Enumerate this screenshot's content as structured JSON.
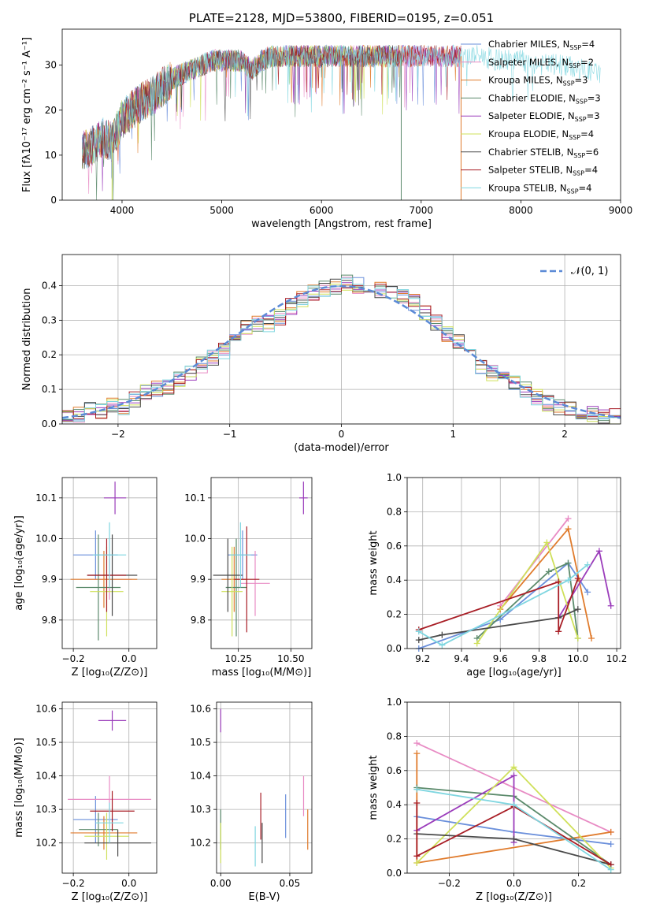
{
  "colors": {
    "chabrier_miles": "#6a8fdb",
    "salpeter_miles": "#e88bc4",
    "kroupa_miles": "#e07b2c",
    "chabrier_elodie": "#5b8a6b",
    "salpeter_elodie": "#9b3dbb",
    "kroupa_elodie": "#cfe05a",
    "chabrier_stelib": "#4a4a4a",
    "salpeter_stelib": "#a81d25",
    "kroupa_stelib": "#7fd6e0",
    "normal_curve": "#5b8ad6",
    "grid": "#b0b0b0"
  },
  "chart_data": [
    {
      "type": "line",
      "title": "PLATE=2128, MJD=53800, FIBERID=0195, z=0.051",
      "xlabel": "wavelength [Angstrom, rest frame]",
      "ylabel": "Flux [fλ10⁻¹⁷ erg cm⁻² s⁻¹ A⁻¹]",
      "xlim": [
        3400,
        9000
      ],
      "ylim": [
        0,
        38
      ],
      "xticks": [
        "4000",
        "5000",
        "6000",
        "7000",
        "8000",
        "9000"
      ],
      "yticks": [
        "0",
        "10",
        "20",
        "30"
      ],
      "legend_position": "right",
      "grid": false,
      "series": [
        {
          "name": "Chabrier MILES, N",
          "sub": "SSP",
          "suffix": "=4",
          "color_key": "chabrier_miles"
        },
        {
          "name": "Salpeter MILES, N",
          "sub": "SSP",
          "suffix": "=2",
          "color_key": "salpeter_miles"
        },
        {
          "name": "Kroupa MILES, N",
          "sub": "SSP",
          "suffix": "=3",
          "color_key": "kroupa_miles"
        },
        {
          "name": "Chabrier ELODIE, N",
          "sub": "SSP",
          "suffix": "=3",
          "color_key": "chabrier_elodie"
        },
        {
          "name": "Salpeter ELODIE, N",
          "sub": "SSP",
          "suffix": "=3",
          "color_key": "salpeter_elodie"
        },
        {
          "name": "Kroupa ELODIE, N",
          "sub": "SSP",
          "suffix": "=4",
          "color_key": "kroupa_elodie"
        },
        {
          "name": "Chabrier STELIB, N",
          "sub": "SSP",
          "suffix": "=6",
          "color_key": "chabrier_stelib"
        },
        {
          "name": "Salpeter STELIB, N",
          "sub": "SSP",
          "suffix": "=4",
          "color_key": "salpeter_stelib"
        },
        {
          "name": "Kroupa STELIB, N",
          "sub": "SSP",
          "suffix": "=4",
          "color_key": "kroupa_stelib"
        }
      ],
      "spectrum_envelope": {
        "x": [
          3600,
          3700,
          3800,
          3900,
          4000,
          4100,
          4200,
          4300,
          4400,
          4500,
          4600,
          4700,
          4800,
          4900,
          5000,
          5100,
          5200,
          5300,
          5400,
          5500,
          5600,
          5700,
          5800,
          5900,
          6000,
          6200,
          6400,
          6600,
          6800,
          7000,
          7200,
          7400,
          7600,
          7800,
          8000,
          8200,
          8400,
          8600,
          8800
        ],
        "y": [
          11,
          12,
          14,
          13,
          18,
          20,
          22,
          23,
          25,
          27,
          28,
          29,
          30,
          31,
          31,
          31,
          31,
          29,
          31,
          32,
          32,
          32,
          32,
          32,
          32,
          32,
          32,
          32,
          32,
          32,
          32,
          32,
          32,
          31,
          31,
          30,
          30,
          29,
          28
        ]
      }
    },
    {
      "type": "histogram",
      "xlabel": "(data-model)/error",
      "ylabel": "Normed distribution",
      "xlim": [
        -2.5,
        2.5
      ],
      "ylim": [
        0,
        0.49
      ],
      "xticks": [
        "−2",
        "−1",
        "0",
        "1",
        "2"
      ],
      "yticks": [
        "0.0",
        "0.1",
        "0.2",
        "0.3",
        "0.4"
      ],
      "grid": true,
      "legend": "𝒩(0, 1)",
      "bin_edges_start": -2.5,
      "bin_width": 0.1,
      "mean_histogram": [
        0.02,
        0.03,
        0.04,
        0.04,
        0.05,
        0.05,
        0.07,
        0.09,
        0.1,
        0.11,
        0.13,
        0.15,
        0.17,
        0.19,
        0.21,
        0.24,
        0.28,
        0.29,
        0.29,
        0.31,
        0.34,
        0.36,
        0.38,
        0.39,
        0.4,
        0.41,
        0.4,
        0.4,
        0.39,
        0.38,
        0.37,
        0.35,
        0.32,
        0.29,
        0.26,
        0.24,
        0.21,
        0.17,
        0.15,
        0.13,
        0.12,
        0.1,
        0.08,
        0.06,
        0.05,
        0.04,
        0.03,
        0.03,
        0.02,
        0.02
      ]
    },
    {
      "type": "scatter",
      "xlabel": "Z [log₁₀(Z/Z⊙)]",
      "ylabel": "age  [log₁₀(age/yr)]",
      "xlim": [
        -0.24,
        0.1
      ],
      "ylim": [
        9.73,
        10.15
      ],
      "xticks": [
        "−0.2",
        "0.0"
      ],
      "yticks": [
        "9.8",
        "9.9",
        "10.0",
        "10.1"
      ],
      "points": [
        {
          "color_key": "chabrier_miles",
          "x": -0.12,
          "y": 9.96,
          "xerr": 0.08,
          "yerr": 0.06
        },
        {
          "color_key": "salpeter_miles",
          "x": -0.07,
          "y": 9.9,
          "xerr": 0.08,
          "yerr": 0.05
        },
        {
          "color_key": "kroupa_miles",
          "x": -0.09,
          "y": 9.9,
          "xerr": 0.12,
          "yerr": 0.07
        },
        {
          "color_key": "chabrier_elodie",
          "x": -0.11,
          "y": 9.88,
          "xerr": 0.08,
          "yerr": 0.13
        },
        {
          "color_key": "salpeter_elodie",
          "x": -0.05,
          "y": 10.1,
          "xerr": 0.04,
          "yerr": 0.04
        },
        {
          "color_key": "kroupa_elodie",
          "x": -0.08,
          "y": 9.87,
          "xerr": 0.06,
          "yerr": 0.11
        },
        {
          "color_key": "chabrier_stelib",
          "x": -0.06,
          "y": 9.91,
          "xerr": 0.09,
          "yerr": 0.1
        },
        {
          "color_key": "salpeter_stelib",
          "x": -0.08,
          "y": 9.91,
          "xerr": 0.07,
          "yerr": 0.09
        },
        {
          "color_key": "kroupa_stelib",
          "x": -0.07,
          "y": 9.96,
          "xerr": 0.06,
          "yerr": 0.08
        }
      ]
    },
    {
      "type": "scatter",
      "xlabel": "mass [log₁₀(M/M⊙)]",
      "xlim": [
        10.12,
        10.6
      ],
      "ylim": [
        9.73,
        10.15
      ],
      "xticks": [
        "10.25",
        "10.50"
      ],
      "yticks": [
        "9.8",
        "9.9",
        "10.0",
        "10.1"
      ],
      "points": [
        {
          "color_key": "chabrier_miles",
          "x": 10.27,
          "y": 9.96,
          "xerr": 0.07,
          "yerr": 0.06
        },
        {
          "color_key": "salpeter_miles",
          "x": 10.33,
          "y": 9.89,
          "xerr": 0.07,
          "yerr": 0.08
        },
        {
          "color_key": "kroupa_miles",
          "x": 10.23,
          "y": 9.9,
          "xerr": 0.06,
          "yerr": 0.08
        },
        {
          "color_key": "chabrier_elodie",
          "x": 10.24,
          "y": 9.88,
          "xerr": 0.05,
          "yerr": 0.12
        },
        {
          "color_key": "salpeter_elodie",
          "x": 10.56,
          "y": 10.1,
          "xerr": 0.02,
          "yerr": 0.04
        },
        {
          "color_key": "kroupa_elodie",
          "x": 10.22,
          "y": 9.87,
          "xerr": 0.05,
          "yerr": 0.11
        },
        {
          "color_key": "chabrier_stelib",
          "x": 10.2,
          "y": 9.91,
          "xerr": 0.07,
          "yerr": 0.09
        },
        {
          "color_key": "salpeter_stelib",
          "x": 10.29,
          "y": 9.9,
          "xerr": 0.06,
          "yerr": 0.13
        },
        {
          "color_key": "kroupa_stelib",
          "x": 10.26,
          "y": 9.96,
          "xerr": 0.05,
          "yerr": 0.08
        }
      ]
    },
    {
      "type": "line",
      "xlabel": "age  [log₁₀(age/yr)]",
      "ylabel": "mass weight",
      "xlim": [
        9.12,
        10.22
      ],
      "ylim": [
        0,
        1
      ],
      "xticks": [
        "9.2",
        "9.4",
        "9.6",
        "9.8",
        "10.0",
        "10.2"
      ],
      "yticks": [
        "0.0",
        "0.2",
        "0.4",
        "0.6",
        "0.8",
        "1.0"
      ],
      "grid": true,
      "series": [
        {
          "color_key": "chabrier_miles",
          "x": [
            9.18,
            9.6,
            9.95,
            10.05
          ],
          "y": [
            0.0,
            0.17,
            0.5,
            0.33
          ]
        },
        {
          "color_key": "salpeter_miles",
          "x": [
            9.6,
            9.95
          ],
          "y": [
            0.25,
            0.76
          ]
        },
        {
          "color_key": "kroupa_miles",
          "x": [
            9.6,
            9.95,
            10.07
          ],
          "y": [
            0.23,
            0.7,
            0.06
          ]
        },
        {
          "color_key": "chabrier_elodie",
          "x": [
            9.48,
            9.85,
            9.95,
            10.0
          ],
          "y": [
            0.06,
            0.45,
            0.5,
            0.06
          ]
        },
        {
          "color_key": "salpeter_elodie",
          "x": [
            9.9,
            10.11,
            10.17
          ],
          "y": [
            0.18,
            0.57,
            0.25
          ]
        },
        {
          "color_key": "kroupa_elodie",
          "x": [
            9.48,
            9.84,
            10.0
          ],
          "y": [
            0.03,
            0.62,
            0.06
          ]
        },
        {
          "color_key": "chabrier_stelib",
          "x": [
            9.18,
            9.3,
            9.9,
            10.0
          ],
          "y": [
            0.05,
            0.08,
            0.18,
            0.23
          ]
        },
        {
          "color_key": "salpeter_stelib",
          "x": [
            9.18,
            9.9,
            9.9,
            10.0
          ],
          "y": [
            0.11,
            0.39,
            0.1,
            0.41
          ]
        },
        {
          "color_key": "kroupa_stelib",
          "x": [
            9.18,
            9.3,
            9.95,
            10.05
          ],
          "y": [
            0.1,
            0.02,
            0.4,
            0.49
          ]
        }
      ]
    },
    {
      "type": "scatter",
      "xlabel": "Z [log₁₀(Z/Z⊙)]",
      "ylabel": "mass [log₁₀(M/M⊙)]",
      "xlim": [
        -0.24,
        0.1
      ],
      "ylim": [
        10.11,
        10.62
      ],
      "xticks": [
        "−0.2",
        "0.0"
      ],
      "yticks": [
        "10.2",
        "10.3",
        "10.4",
        "10.5",
        "10.6"
      ],
      "points": [
        {
          "color_key": "chabrier_miles",
          "x": -0.12,
          "y": 10.27,
          "xerr": 0.08,
          "yerr": 0.07
        },
        {
          "color_key": "salpeter_miles",
          "x": -0.07,
          "y": 10.33,
          "xerr": 0.15,
          "yerr": 0.07
        },
        {
          "color_key": "kroupa_miles",
          "x": -0.09,
          "y": 10.23,
          "xerr": 0.12,
          "yerr": 0.05
        },
        {
          "color_key": "chabrier_elodie",
          "x": -0.11,
          "y": 10.24,
          "xerr": 0.07,
          "yerr": 0.05
        },
        {
          "color_key": "salpeter_elodie",
          "x": -0.06,
          "y": 10.565,
          "xerr": 0.05,
          "yerr": 0.03
        },
        {
          "color_key": "kroupa_elodie",
          "x": -0.08,
          "y": 10.22,
          "xerr": 0.08,
          "yerr": 0.07
        },
        {
          "color_key": "chabrier_stelib",
          "x": -0.04,
          "y": 10.2,
          "xerr": 0.12,
          "yerr": 0.04
        },
        {
          "color_key": "salpeter_stelib",
          "x": -0.06,
          "y": 10.295,
          "xerr": 0.08,
          "yerr": 0.06
        },
        {
          "color_key": "kroupa_stelib",
          "x": -0.07,
          "y": 10.26,
          "xerr": 0.05,
          "yerr": 0.06
        }
      ]
    },
    {
      "type": "scatter",
      "xlabel": "E(B-V)",
      "xlim": [
        -0.003,
        0.066
      ],
      "ylim": [
        10.11,
        10.62
      ],
      "xticks": [
        "0.00",
        "0.05"
      ],
      "yticks": [
        "10.2",
        "10.3",
        "10.4",
        "10.5",
        "10.6"
      ],
      "points": [
        {
          "color_key": "chabrier_miles",
          "x": 0.047,
          "y": 10.28,
          "yerr": 0.065
        },
        {
          "color_key": "salpeter_miles",
          "x": 0.06,
          "y": 10.34,
          "yerr": 0.06
        },
        {
          "color_key": "kroupa_miles",
          "x": 0.063,
          "y": 10.24,
          "yerr": 0.06
        },
        {
          "color_key": "chabrier_elodie",
          "x": 0.0,
          "y": 10.24,
          "yerr": 0.06
        },
        {
          "color_key": "salpeter_elodie",
          "x": 0.0,
          "y": 10.565,
          "yerr": 0.035
        },
        {
          "color_key": "kroupa_elodie",
          "x": 0.0,
          "y": 10.2,
          "yerr": 0.06
        },
        {
          "color_key": "chabrier_stelib",
          "x": 0.03,
          "y": 10.2,
          "yerr": 0.06
        },
        {
          "color_key": "salpeter_stelib",
          "x": 0.029,
          "y": 10.28,
          "yerr": 0.07
        },
        {
          "color_key": "kroupa_stelib",
          "x": 0.025,
          "y": 10.19,
          "yerr": 0.06
        }
      ]
    },
    {
      "type": "line",
      "xlabel": "Z [log₁₀(Z/Z⊙)]",
      "ylabel": "mass weight",
      "xlim": [
        -0.33,
        0.33
      ],
      "ylim": [
        0,
        1
      ],
      "xticks": [
        "−0.2",
        "0.0",
        "0.2"
      ],
      "yticks": [
        "0.0",
        "0.2",
        "0.4",
        "0.6",
        "0.8",
        "1.0"
      ],
      "grid": true,
      "series": [
        {
          "color_key": "chabrier_miles",
          "x": [
            -0.3,
            0.0,
            0.3
          ],
          "y": [
            0.33,
            0.24,
            0.17
          ]
        },
        {
          "color_key": "salpeter_miles",
          "x": [
            -0.3,
            0.3
          ],
          "y": [
            0.76,
            0.24
          ]
        },
        {
          "color_key": "kroupa_miles",
          "x": [
            -0.3,
            -0.3,
            0.3
          ],
          "y": [
            0.7,
            0.06,
            0.24
          ]
        },
        {
          "color_key": "chabrier_elodie",
          "x": [
            -0.3,
            0.0,
            0.3
          ],
          "y": [
            0.5,
            0.45,
            0.05
          ]
        },
        {
          "color_key": "salpeter_elodie",
          "x": [
            -0.3,
            0.0,
            0.0
          ],
          "y": [
            0.25,
            0.57,
            0.18
          ]
        },
        {
          "color_key": "kroupa_elodie",
          "x": [
            -0.3,
            0.0,
            0.3
          ],
          "y": [
            0.06,
            0.62,
            0.03
          ]
        },
        {
          "color_key": "chabrier_stelib",
          "x": [
            -0.3,
            0.0,
            0.3
          ],
          "y": [
            0.23,
            0.2,
            0.05
          ]
        },
        {
          "color_key": "salpeter_stelib",
          "x": [
            -0.3,
            -0.3,
            0.0,
            0.3
          ],
          "y": [
            0.41,
            0.1,
            0.39,
            0.05
          ]
        },
        {
          "color_key": "kroupa_stelib",
          "x": [
            -0.3,
            0.0,
            0.3
          ],
          "y": [
            0.49,
            0.4,
            0.02
          ]
        }
      ]
    }
  ]
}
